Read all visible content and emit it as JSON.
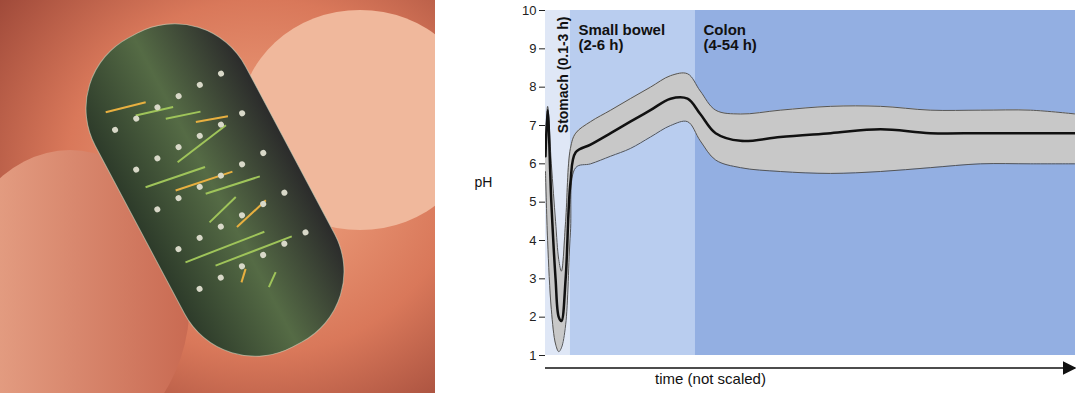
{
  "chart_data": {
    "type": "line",
    "xlabel": "time (not scaled)",
    "ylabel": "pH",
    "xlim": [
      0,
      100
    ],
    "ylim": [
      1,
      10
    ],
    "yticks": [
      1,
      2,
      3,
      4,
      5,
      6,
      7,
      8,
      9,
      10
    ],
    "tick_labels": "y",
    "grid": false,
    "x": [
      0,
      0.4,
      1.1,
      1.9,
      2.5,
      3.0,
      3.8,
      4.7,
      5.7,
      8.5,
      12.3,
      16.0,
      19.8,
      23.6,
      26.8,
      29.2,
      32.1,
      36.8,
      44.3,
      53.8,
      63.2,
      72.6,
      82.1,
      91.5,
      100
    ],
    "mean": [
      6.2,
      7.4,
      5.0,
      3.0,
      2.0,
      1.9,
      3.0,
      5.5,
      6.3,
      6.5,
      6.8,
      7.1,
      7.4,
      7.7,
      7.7,
      7.3,
      6.8,
      6.6,
      6.7,
      6.8,
      6.9,
      6.8,
      6.8,
      6.8,
      6.8
    ],
    "upper": [
      6.3,
      7.5,
      6.0,
      4.5,
      3.5,
      3.2,
      4.5,
      6.4,
      6.8,
      7.1,
      7.4,
      7.7,
      8.0,
      8.3,
      8.35,
      7.9,
      7.4,
      7.3,
      7.4,
      7.5,
      7.5,
      7.4,
      7.4,
      7.4,
      7.3
    ],
    "lower": [
      5.8,
      4.0,
      2.2,
      1.3,
      1.1,
      1.2,
      1.8,
      4.2,
      5.9,
      6.0,
      6.2,
      6.4,
      6.7,
      7.0,
      7.1,
      6.6,
      6.1,
      5.9,
      5.8,
      5.75,
      5.8,
      5.9,
      6.0,
      6.0,
      6.0
    ],
    "line_color": "#111111",
    "band_color": "#c8c8c8",
    "regions": [
      {
        "label": [
          "Stomach (0.1-3 h)"
        ],
        "start": 0,
        "end": 4.7,
        "color": "#dfe7f6"
      },
      {
        "label": [
          "Small bowel",
          "(2-6 h)"
        ],
        "start": 4.7,
        "end": 28.3,
        "color": "#b9cdef"
      },
      {
        "label": [
          "Colon",
          "(4-54 h)"
        ],
        "start": 28.3,
        "end": 100,
        "color": "#93afe2"
      }
    ]
  }
}
